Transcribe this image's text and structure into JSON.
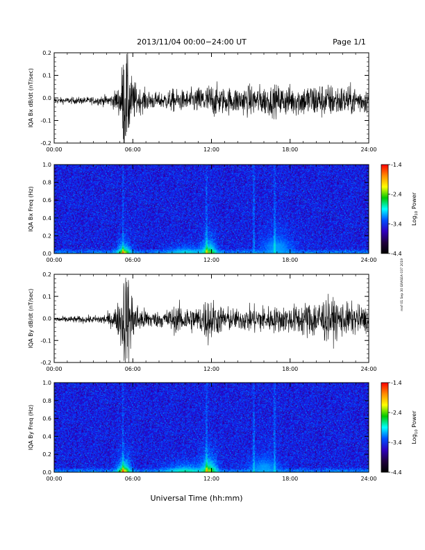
{
  "header": {
    "title": "2013/11/04  00:00−24:00 UT",
    "page": "Page 1/1"
  },
  "footer": {
    "xlabel": "Universal Time (hh:mm)",
    "side_note": "mnf 01 Sep 30 GRASEA 037 2019"
  },
  "colorbar": {
    "ticks": [
      "-1.4",
      "-2.4",
      "-3.4",
      "-4.4"
    ],
    "label_main": "Log",
    "label_sub": "10",
    "label_tail": " Power",
    "colors": [
      "#ff0000",
      "#ff8c00",
      "#ffff00",
      "#00c800",
      "#00ffff",
      "#0050ff",
      "#3000c0",
      "#200040",
      "#000000"
    ]
  },
  "chart_data": [
    {
      "type": "line",
      "name": "IQA Bx dB/dt",
      "ylabel": "IQA Bx dB/dt (nT/sec)",
      "xlim": [
        0,
        24
      ],
      "ylim": [
        -0.2,
        0.2
      ],
      "x_ticks": [
        "00:00",
        "06:00",
        "12:00",
        "18:00",
        "24:00"
      ],
      "y_ticks": [
        "0.2",
        "0.1",
        "0.0",
        "-0.1",
        "-0.2"
      ],
      "baseline": -0.012,
      "envelope": [
        {
          "t": 0,
          "a": 0.012
        },
        {
          "t": 3.0,
          "a": 0.015
        },
        {
          "t": 4.4,
          "a": 0.025
        },
        {
          "t": 5.0,
          "a": 0.06
        },
        {
          "t": 5.3,
          "a": 0.2
        },
        {
          "t": 5.6,
          "a": 0.19
        },
        {
          "t": 5.9,
          "a": 0.1
        },
        {
          "t": 6.4,
          "a": 0.05
        },
        {
          "t": 8.0,
          "a": 0.03
        },
        {
          "t": 9.0,
          "a": 0.045
        },
        {
          "t": 10.0,
          "a": 0.04
        },
        {
          "t": 11.5,
          "a": 0.06
        },
        {
          "t": 12.0,
          "a": 0.07
        },
        {
          "t": 13.0,
          "a": 0.05
        },
        {
          "t": 15.0,
          "a": 0.06
        },
        {
          "t": 16.5,
          "a": 0.06
        },
        {
          "t": 18.5,
          "a": 0.06
        },
        {
          "t": 20.0,
          "a": 0.07
        },
        {
          "t": 22.0,
          "a": 0.06
        },
        {
          "t": 24.0,
          "a": 0.05
        }
      ]
    },
    {
      "type": "heatmap",
      "name": "IQA Bx Freq",
      "ylabel": "IQA Bx Freq (Hz)",
      "xlim": [
        0,
        24
      ],
      "ylim": [
        0,
        1
      ],
      "x_ticks": [
        "00:00",
        "06:00",
        "12:00",
        "18:00",
        "24:00"
      ],
      "y_ticks": [
        "1.0",
        "0.8",
        "0.6",
        "0.4",
        "0.2",
        "0.0"
      ],
      "color_scale": [
        -4.4,
        -1.4
      ],
      "enhancements": [
        {
          "t": 5.3,
          "f": 0.02,
          "w": 0.5,
          "h": 0.08,
          "level": -1.8
        },
        {
          "t": 11.8,
          "f": 0.03,
          "w": 0.6,
          "h": 0.1,
          "level": -2.0
        },
        {
          "t": 10.0,
          "f": 0.02,
          "w": 1.2,
          "h": 0.05,
          "level": -2.6
        },
        {
          "t": 17.0,
          "f": 0.1,
          "w": 1.2,
          "h": 0.12,
          "level": -2.9
        }
      ],
      "vertical_streaks": [
        5.2,
        11.6,
        15.2,
        16.8
      ]
    },
    {
      "type": "line",
      "name": "IQA By dB/dt",
      "ylabel": "IQA By dB/dt (nT/sec)",
      "xlim": [
        0,
        24
      ],
      "ylim": [
        -0.2,
        0.2
      ],
      "x_ticks": [
        "00:00",
        "06:00",
        "12:00",
        "18:00",
        "24:00"
      ],
      "y_ticks": [
        "0.2",
        "0.1",
        "0.0",
        "-0.1",
        "-0.2"
      ],
      "baseline": -0.005,
      "envelope": [
        {
          "t": 0,
          "a": 0.012
        },
        {
          "t": 3.0,
          "a": 0.015
        },
        {
          "t": 4.4,
          "a": 0.03
        },
        {
          "t": 5.0,
          "a": 0.08
        },
        {
          "t": 5.3,
          "a": 0.2
        },
        {
          "t": 5.6,
          "a": 0.2
        },
        {
          "t": 6.0,
          "a": 0.1
        },
        {
          "t": 6.5,
          "a": 0.05
        },
        {
          "t": 8.0,
          "a": 0.03
        },
        {
          "t": 9.5,
          "a": 0.06
        },
        {
          "t": 11.0,
          "a": 0.05
        },
        {
          "t": 11.8,
          "a": 0.1
        },
        {
          "t": 12.5,
          "a": 0.06
        },
        {
          "t": 14.0,
          "a": 0.04
        },
        {
          "t": 15.5,
          "a": 0.06
        },
        {
          "t": 17.0,
          "a": 0.05
        },
        {
          "t": 18.5,
          "a": 0.06
        },
        {
          "t": 20.5,
          "a": 0.09
        },
        {
          "t": 22.0,
          "a": 0.07
        },
        {
          "t": 24.0,
          "a": 0.05
        }
      ]
    },
    {
      "type": "heatmap",
      "name": "IQA By Freq",
      "ylabel": "IQA By Freq (Hz)",
      "xlim": [
        0,
        24
      ],
      "ylim": [
        0,
        1
      ],
      "x_ticks": [
        "00:00",
        "06:00",
        "12:00",
        "18:00",
        "24:00"
      ],
      "y_ticks": [
        "1.0",
        "0.8",
        "0.6",
        "0.4",
        "0.2",
        "0.0"
      ],
      "color_scale": [
        -4.4,
        -1.4
      ],
      "enhancements": [
        {
          "t": 5.3,
          "f": 0.02,
          "w": 0.5,
          "h": 0.1,
          "level": -1.7
        },
        {
          "t": 11.8,
          "f": 0.03,
          "w": 0.6,
          "h": 0.12,
          "level": -1.9
        },
        {
          "t": 10.0,
          "f": 0.02,
          "w": 1.4,
          "h": 0.06,
          "level": -2.4
        },
        {
          "t": 16.0,
          "f": 0.08,
          "w": 1.2,
          "h": 0.1,
          "level": -2.9
        }
      ],
      "vertical_streaks": [
        5.2,
        11.6,
        15.2,
        16.8
      ]
    }
  ]
}
